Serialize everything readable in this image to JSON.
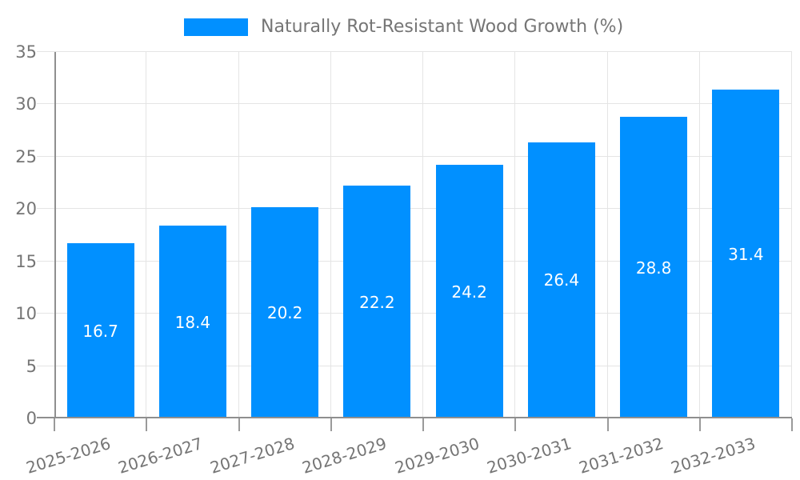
{
  "chart_data": {
    "type": "bar",
    "title": "Naturally Rot-Resistant Wood Growth (%)",
    "legend_position": "top",
    "categories": [
      "2025-2026",
      "2026-2027",
      "2027-2028",
      "2028-2029",
      "2029-2030",
      "2030-2031",
      "2031-2032",
      "2032-2033"
    ],
    "series": [
      {
        "name": "Naturally Rot-Resistant Wood Growth (%)",
        "values": [
          16.7,
          18.4,
          20.2,
          22.2,
          24.2,
          26.4,
          28.8,
          31.4
        ]
      }
    ],
    "value_labels": [
      "16.7",
      "18.4",
      "20.2",
      "22.2",
      "24.2",
      "26.4",
      "28.8",
      "31.4"
    ],
    "xlabel": "",
    "ylabel": "",
    "ylim": [
      0,
      35
    ],
    "yticks": [
      0,
      5,
      10,
      15,
      20,
      25,
      30,
      35
    ],
    "grid": true,
    "value_label_position": "inside-center",
    "colors": {
      "bar": "#0190ff",
      "value_label": "#ffffff",
      "axis_text": "#757575",
      "grid": "#e4e4e4",
      "axis_line": "#8f8f8f",
      "tick": "#9a9a9a",
      "background": "#ffffff"
    }
  }
}
